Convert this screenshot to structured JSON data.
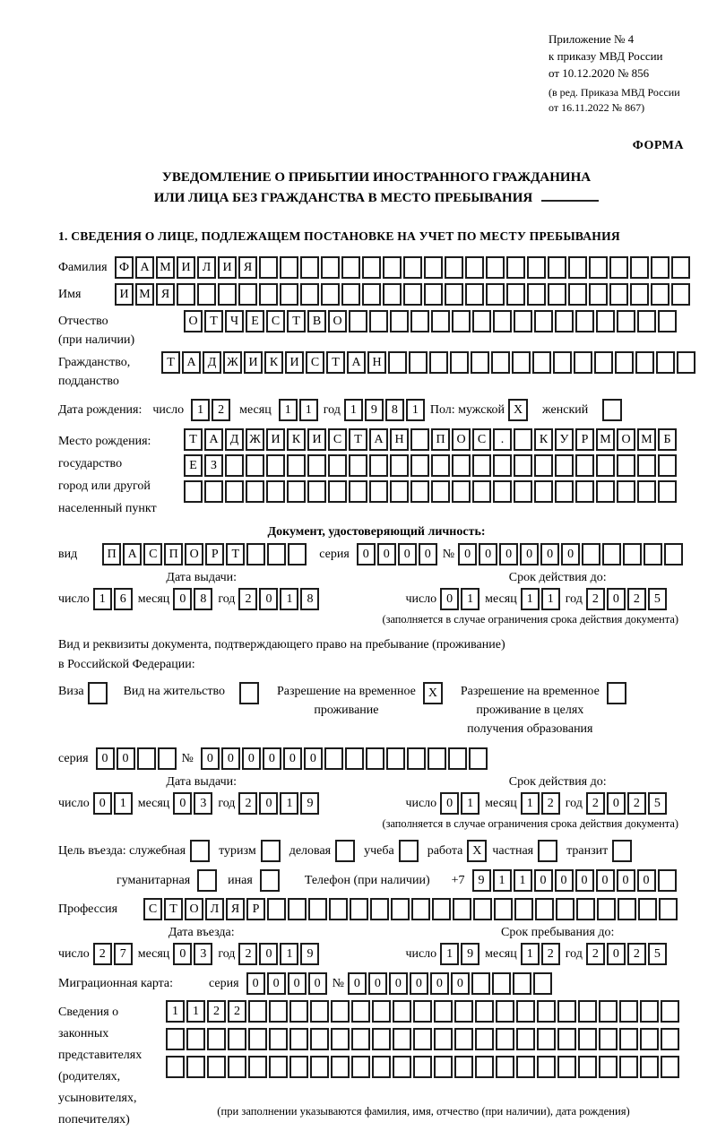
{
  "accent_color": "#1c1c1c",
  "page_bg": "#ffffff",
  "header": {
    "appendix": [
      "Приложение № 4",
      "к приказу МВД России",
      "от 10.12.2020 № 856"
    ],
    "amendment": [
      "(в ред. Приказа МВД России",
      "от 16.11.2022 № 867)"
    ],
    "form_label": "ФОРМА"
  },
  "title": {
    "line1": "УВЕДОМЛЕНИЕ О ПРИБЫТИИ ИНОСТРАННОГО ГРАЖДАНИНА",
    "line2": "ИЛИ ЛИЦА БЕЗ ГРАЖДАНСТВА В МЕСТО ПРЕБЫВАНИЯ"
  },
  "section1_heading": "1. СВЕДЕНИЯ О ЛИЦЕ, ПОДЛЕЖАЩЕМ ПОСТАНОВКЕ НА УЧЕТ ПО МЕСТУ ПРЕБЫВАНИЯ",
  "surname": {
    "label": "Фамилия",
    "cells": {
      "v": "ФАМИЛИЯ",
      "n": 28
    }
  },
  "name": {
    "label": "Имя",
    "cells": {
      "v": "ИМЯ",
      "n": 28
    }
  },
  "patronymic": {
    "label1": "Отчество",
    "label2": "(при наличии)",
    "cells": {
      "v": "ОТЧЕСТВО",
      "n": 24
    }
  },
  "citizenship": {
    "label1": "Гражданство,",
    "label2": "подданство",
    "cells": {
      "v": "ТАДЖИКИСТАН",
      "n": 26
    }
  },
  "birth_date": {
    "label": "Дата рождения:",
    "day_label": "число",
    "day": {
      "v": "12",
      "n": 2
    },
    "month_label": "месяц",
    "month": {
      "v": "11",
      "n": 2
    },
    "year_label": "год",
    "year": {
      "v": "1981",
      "n": 4
    },
    "sex_label": "Пол: мужской",
    "male_checked": true,
    "female_label": "женский",
    "female_checked": false
  },
  "birth_place": {
    "labels": [
      "Место рождения:",
      "государство",
      "город или другой",
      "населенный пункт"
    ],
    "row1": {
      "v": "ТАДЖИКИСТАН ПОС. КУРМОМБ",
      "n": 24
    },
    "row2": {
      "v": "ЕЗ",
      "n": 24
    },
    "row3": {
      "v": "",
      "n": 24
    }
  },
  "id_doc": {
    "heading": "Документ, удостоверяющий личность:",
    "kind_label": "вид",
    "kind": {
      "v": "ПАСПОРТ",
      "n": 10
    },
    "series_label": "серия",
    "series": {
      "v": "0000",
      "n": 4
    },
    "number_label": "№",
    "number": {
      "v": "000000",
      "n": 11
    },
    "issue_title": "Дата выдачи:",
    "valid_title": "Срок действия до:",
    "day_label": "число",
    "month_label": "месяц",
    "year_label": "год",
    "issue": {
      "day": {
        "v": "16",
        "n": 2
      },
      "month": {
        "v": "08",
        "n": 2
      },
      "year": {
        "v": "2018",
        "n": 4
      }
    },
    "valid": {
      "day": {
        "v": "01",
        "n": 2
      },
      "month": {
        "v": "11",
        "n": 2
      },
      "year": {
        "v": "2025",
        "n": 4
      }
    },
    "note": "(заполняется в случае ограничения срока действия документа)"
  },
  "resid_doc": {
    "line1": "Вид и реквизиты документа, подтверждающего право на пребывание (проживание)",
    "line2": "в Российской Федерации:",
    "visa_label": "Виза",
    "visa_checked": false,
    "permit_label": "Вид на жительство",
    "permit_checked": false,
    "temp_lines": [
      "Разрешение на временное",
      "проживание"
    ],
    "temp_checked": true,
    "temp_edu_lines": [
      "Разрешение на временное",
      "проживание в целях",
      "получения образования"
    ],
    "temp_edu_checked": false,
    "series_label": "серия",
    "series": {
      "v": "00",
      "n": 4
    },
    "number_label": "№",
    "number": {
      "v": "000000",
      "n": 14
    },
    "issue_title": "Дата выдачи:",
    "valid_title": "Срок действия до:",
    "day_label": "число",
    "month_label": "месяц",
    "year_label": "год",
    "issue": {
      "day": {
        "v": "01",
        "n": 2
      },
      "month": {
        "v": "03",
        "n": 2
      },
      "year": {
        "v": "2019",
        "n": 4
      }
    },
    "valid": {
      "day": {
        "v": "01",
        "n": 2
      },
      "month": {
        "v": "12",
        "n": 2
      },
      "year": {
        "v": "2025",
        "n": 4
      }
    },
    "note": "(заполняется в случае ограничения срока действия документа)"
  },
  "visit": {
    "label": "Цель въезда: служебная",
    "tourism": "туризм",
    "tourism_checked": false,
    "business": "деловая",
    "business_checked": false,
    "study": "учеба",
    "study_checked": false,
    "work": "работа",
    "work_checked": true,
    "private": "частная",
    "private_checked": false,
    "transit": "транзит",
    "transit_checked": false,
    "official_checked": false,
    "humanitarian": "гуманитарная",
    "humanitarian_checked": false,
    "other": "иная",
    "other_checked": false,
    "phone_label": "Телефон (при наличии)",
    "phone_prefix": "+7",
    "phone": {
      "v": "911000000",
      "n": 10
    }
  },
  "profession": {
    "label": "Профессия",
    "cells": {
      "v": "СТОЛЯР",
      "n": 26
    }
  },
  "entry": {
    "issue_title": "Дата въезда:",
    "valid_title": "Срок пребывания до:",
    "day_label": "число",
    "month_label": "месяц",
    "year_label": "год",
    "issue": {
      "day": {
        "v": "27",
        "n": 2
      },
      "month": {
        "v": "03",
        "n": 2
      },
      "year": {
        "v": "2019",
        "n": 4
      }
    },
    "valid": {
      "day": {
        "v": "19",
        "n": 2
      },
      "month": {
        "v": "12",
        "n": 2
      },
      "year": {
        "v": "2025",
        "n": 4
      }
    }
  },
  "migration_card": {
    "label": "Миграционная карта:",
    "series_label": "серия",
    "series": {
      "v": "0000",
      "n": 4
    },
    "number_label": "№",
    "number": {
      "v": "000000",
      "n": 10
    }
  },
  "guardians": {
    "labels": [
      "Сведения о",
      "законных",
      "представителях",
      "(родителях,",
      "усыновителях,",
      "попечителях)"
    ],
    "row1": {
      "v": "1122",
      "n": 25
    },
    "row2": {
      "v": "",
      "n": 25
    },
    "row3": {
      "v": "",
      "n": 25
    },
    "note": "(при заполнении указываются фамилия, имя, отчество (при наличии), дата рождения)"
  }
}
